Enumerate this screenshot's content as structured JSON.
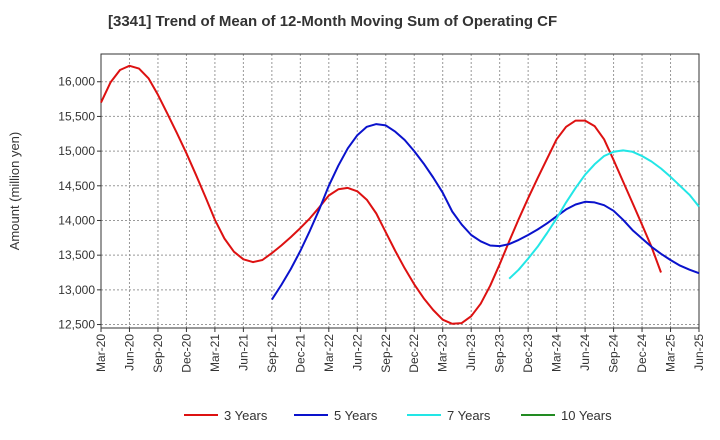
{
  "chart_data": {
    "type": "line",
    "title": "[3341]  Trend of Mean of 12-Month Moving Sum of Operating CF",
    "xlabel": "",
    "ylabel": "Amount (million yen)",
    "ylim": [
      12450,
      16400
    ],
    "yticks": [
      12500,
      13000,
      13500,
      14000,
      14500,
      15000,
      15500,
      16000
    ],
    "ytick_labels": [
      "12,500",
      "13,000",
      "13,500",
      "14,000",
      "14,500",
      "15,000",
      "15,500",
      "16,000"
    ],
    "xticks": [
      "Mar-20",
      "Jun-20",
      "Sep-20",
      "Dec-20",
      "Mar-21",
      "Jun-21",
      "Sep-21",
      "Dec-21",
      "Mar-22",
      "Jun-22",
      "Sep-22",
      "Dec-22",
      "Mar-23",
      "Jun-23",
      "Sep-23",
      "Dec-23",
      "Mar-24",
      "Jun-24",
      "Sep-24",
      "Dec-24",
      "Mar-25",
      "Jun-25"
    ],
    "grid": true,
    "legend_position": "bottom",
    "series": [
      {
        "name": "3 Years",
        "color": "#dd1111",
        "start_index": 0,
        "values": [
          15700,
          15990,
          16170,
          16230,
          16190,
          16050,
          15810,
          15540,
          15260,
          14970,
          14660,
          14340,
          14010,
          13740,
          13550,
          13440,
          13400,
          13430,
          13530,
          13640,
          13760,
          13890,
          14030,
          14190,
          14360,
          14450,
          14470,
          14420,
          14300,
          14100,
          13830,
          13560,
          13310,
          13080,
          12880,
          12710,
          12570,
          12510,
          12520,
          12620,
          12800,
          13060,
          13370,
          13700,
          14020,
          14320,
          14610,
          14890,
          15170,
          15350,
          15440,
          15440,
          15360,
          15170,
          14870,
          14560,
          14250,
          13940,
          13620,
          13250
        ]
      },
      {
        "name": "5 Years",
        "color": "#0a12cc",
        "start_index": 18,
        "values": [
          12860,
          13070,
          13300,
          13560,
          13850,
          14160,
          14500,
          14790,
          15040,
          15230,
          15350,
          15390,
          15370,
          15280,
          15160,
          15000,
          14820,
          14620,
          14400,
          14130,
          13940,
          13790,
          13700,
          13640,
          13630,
          13660,
          13720,
          13790,
          13870,
          13960,
          14060,
          14160,
          14230,
          14270,
          14260,
          14220,
          14140,
          14010,
          13860,
          13740,
          13620,
          13520,
          13430,
          13350,
          13290,
          13240
        ]
      },
      {
        "name": "7 Years",
        "color": "#22e6e6",
        "start_index": 43,
        "values": [
          13160,
          13290,
          13450,
          13620,
          13820,
          14030,
          14260,
          14470,
          14660,
          14810,
          14930,
          14990,
          15010,
          14990,
          14930,
          14850,
          14750,
          14630,
          14500,
          14370,
          14200
        ]
      },
      {
        "name": "10 Years",
        "color": "#228b22",
        "start_index": 0,
        "values": []
      }
    ]
  }
}
